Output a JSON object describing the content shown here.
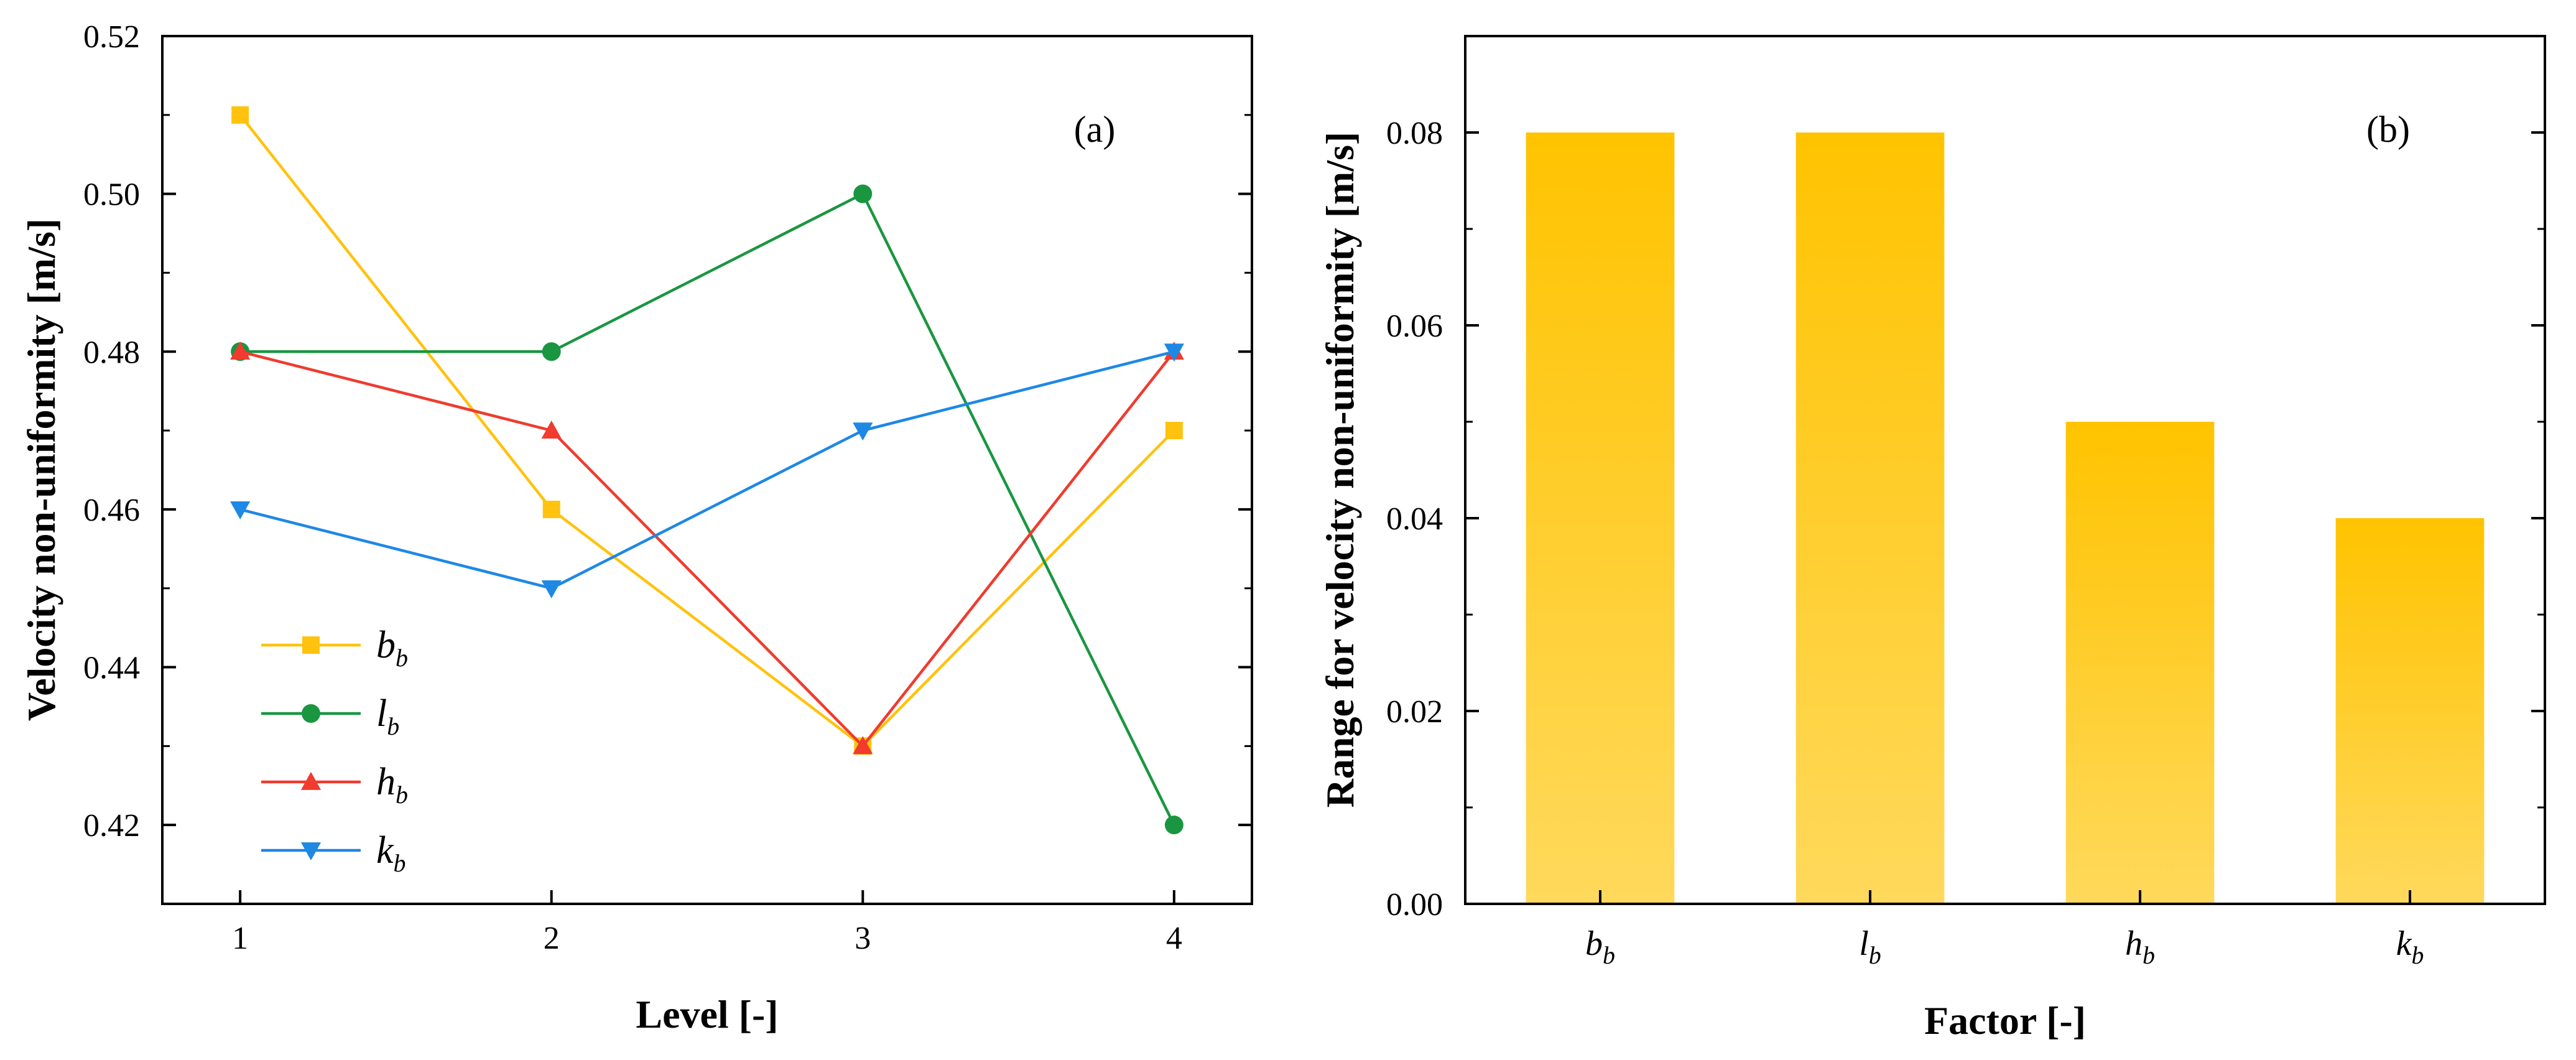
{
  "chart_data": [
    {
      "type": "line",
      "panel_label": "(a)",
      "xlabel": "Level [-]",
      "ylabel": "Velocity non-uniformity [m/s]",
      "x": [
        1,
        2,
        3,
        4
      ],
      "xticks": [
        "1",
        "2",
        "3",
        "4"
      ],
      "xlim": [
        0.75,
        4.25
      ],
      "ylim": [
        0.41,
        0.52
      ],
      "yticks": [
        "0.42",
        "0.44",
        "0.46",
        "0.48",
        "0.50",
        "0.52"
      ],
      "legend_position": "bottom-left",
      "series": [
        {
          "name": "b",
          "subscript": "b",
          "marker": "square",
          "color": "#FFC20E",
          "values": [
            0.51,
            0.46,
            0.43,
            0.47
          ]
        },
        {
          "name": "l",
          "subscript": "b",
          "marker": "circle",
          "color": "#1A9641",
          "values": [
            0.48,
            0.48,
            0.5,
            0.42
          ]
        },
        {
          "name": "h",
          "subscript": "b",
          "marker": "triangle-up",
          "color": "#F03B2E",
          "values": [
            0.48,
            0.47,
            0.43,
            0.48
          ]
        },
        {
          "name": "k",
          "subscript": "b",
          "marker": "triangle-down",
          "color": "#1E88E5",
          "values": [
            0.46,
            0.45,
            0.47,
            0.48
          ]
        }
      ]
    },
    {
      "type": "bar",
      "panel_label": "(b)",
      "xlabel": "Factor [-]",
      "ylabel": "Range for velocity non-uniformity [m/s]",
      "categories": [
        {
          "name": "b",
          "subscript": "b"
        },
        {
          "name": "l",
          "subscript": "b"
        },
        {
          "name": "h",
          "subscript": "b"
        },
        {
          "name": "k",
          "subscript": "b"
        }
      ],
      "values": [
        0.08,
        0.08,
        0.05,
        0.04
      ],
      "ylim": [
        0.0,
        0.09
      ],
      "yticks": [
        "0.00",
        "0.02",
        "0.04",
        "0.06",
        "0.08"
      ],
      "bar_color_top": "#FFC300",
      "bar_color_bottom": "#FFD95C"
    }
  ]
}
